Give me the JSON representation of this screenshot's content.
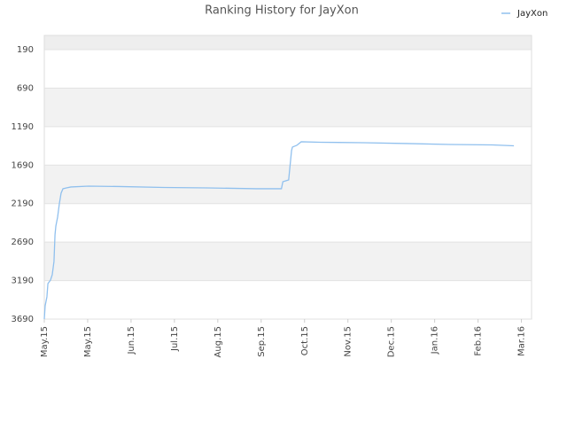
{
  "chart_data": {
    "type": "line",
    "title": "Ranking History for JayXon",
    "series": [
      {
        "name": "JayXon",
        "color": "#90c0ee",
        "x": [
          0,
          0.6,
          1.8,
          2.5,
          4.3,
          5.5,
          6.7,
          7.4,
          8,
          9.2,
          10.4,
          11.6,
          12.9,
          15.3,
          18.4,
          30.6,
          52,
          82.7,
          113,
          147,
          164,
          165,
          169,
          171,
          171.6,
          174.6,
          177.7,
          191,
          220.6,
          251,
          280.6,
          310,
          324.8
        ],
        "values": [
          3690,
          3517,
          3402,
          3229,
          3183,
          3114,
          2941,
          2596,
          2481,
          2366,
          2193,
          2055,
          1997,
          1986,
          1974,
          1963,
          1968,
          1980,
          1986,
          1997,
          1997,
          1905,
          1882,
          1502,
          1456,
          1433,
          1387,
          1393,
          1399,
          1410,
          1422,
          1428,
          1439
        ]
      }
    ],
    "xlim": [
      0,
      337
    ],
    "xticks": [
      {
        "value": 0,
        "label": "May.15"
      },
      {
        "value": 30,
        "label": "May.15"
      },
      {
        "value": 60,
        "label": "Jun.15"
      },
      {
        "value": 90,
        "label": "Jul.15"
      },
      {
        "value": 120,
        "label": "Aug.15"
      },
      {
        "value": 150,
        "label": "Sep.15"
      },
      {
        "value": 180,
        "label": "Oct.15"
      },
      {
        "value": 210,
        "label": "Nov.15"
      },
      {
        "value": 240,
        "label": "Dec.15"
      },
      {
        "value": 270,
        "label": "Jan.16"
      },
      {
        "value": 300,
        "label": "Feb.16"
      },
      {
        "value": 330,
        "label": "Mar.16"
      }
    ],
    "ylim": [
      3690,
      6
    ],
    "yticks": [
      190,
      690,
      1190,
      1690,
      2190,
      2690,
      3190,
      3690
    ],
    "grid": true,
    "legend": "top-right"
  }
}
